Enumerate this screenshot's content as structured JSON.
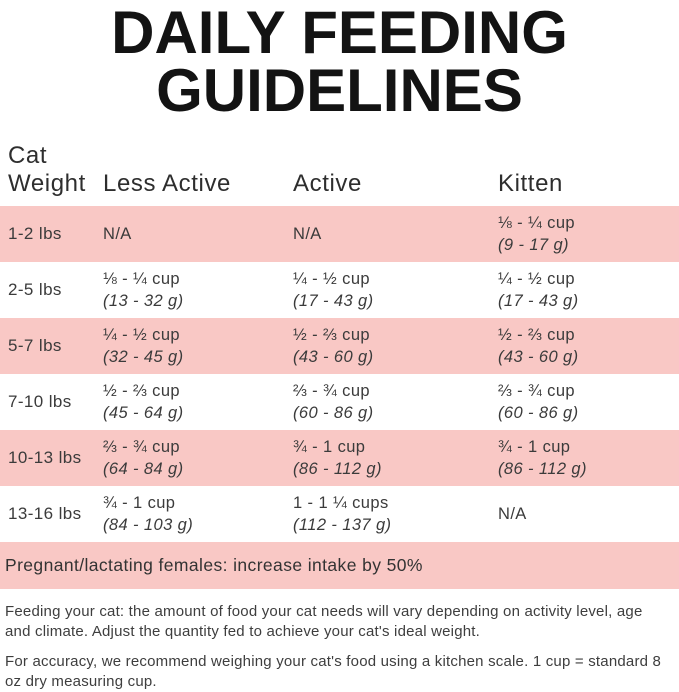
{
  "title": {
    "line1": "DAILY FEEDING",
    "line2": "GUIDELINES"
  },
  "table": {
    "header": {
      "col1_line1": "Cat",
      "col1_line2": "Weight",
      "col2": "Less Active",
      "col3": "Active",
      "col4": "Kitten"
    },
    "rows": [
      {
        "weight": "1-2 lbs",
        "less_active": {
          "cups": "N/A",
          "grams": ""
        },
        "active": {
          "cups": "N/A",
          "grams": ""
        },
        "kitten": {
          "cups": "⅛ - ¼ cup",
          "grams": "(9 - 17 g)"
        }
      },
      {
        "weight": "2-5 lbs",
        "less_active": {
          "cups": "⅛ - ¼ cup",
          "grams": "(13 - 32 g)"
        },
        "active": {
          "cups": "¼ - ½ cup",
          "grams": "(17 - 43 g)"
        },
        "kitten": {
          "cups": "¼ - ½ cup",
          "grams": "(17 - 43 g)"
        }
      },
      {
        "weight": "5-7 lbs",
        "less_active": {
          "cups": "¼ - ½ cup",
          "grams": "(32 - 45 g)"
        },
        "active": {
          "cups": "½ - ⅔ cup",
          "grams": "(43 - 60 g)"
        },
        "kitten": {
          "cups": "½ - ⅔ cup",
          "grams": "(43 - 60 g)"
        }
      },
      {
        "weight": "7-10 lbs",
        "less_active": {
          "cups": "½ - ⅔ cup",
          "grams": "(45 - 64 g)"
        },
        "active": {
          "cups": "⅔ - ¾ cup",
          "grams": "(60 - 86 g)"
        },
        "kitten": {
          "cups": "⅔ - ¾ cup",
          "grams": "(60 - 86 g)"
        }
      },
      {
        "weight": "10-13 lbs",
        "less_active": {
          "cups": "⅔ - ¾ cup",
          "grams": "(64 - 84 g)"
        },
        "active": {
          "cups": "¾ - 1 cup",
          "grams": "(86 - 112 g)"
        },
        "kitten": {
          "cups": "¾ - 1 cup",
          "grams": "(86 - 112 g)"
        }
      },
      {
        "weight": "13-16 lbs",
        "less_active": {
          "cups": "¾ - 1 cup",
          "grams": "(84 - 103 g)"
        },
        "active": {
          "cups": "1 - 1 ¼ cups",
          "grams": "(112 - 137 g)"
        },
        "kitten": {
          "cups": "N/A",
          "grams": ""
        }
      }
    ]
  },
  "banner": {
    "text": "Pregnant/lactating females: increase intake by 50%"
  },
  "notes": [
    "Feeding your cat: the amount of food your cat needs will vary depending on activity level, age and climate. Adjust the quantity fed to achieve your cat's ideal weight.",
    "For accuracy, we recommend weighing your cat's food using a kitchen scale. 1 cup = standard 8 oz dry measuring cup."
  ],
  "colors": {
    "row_pink": "#f9c8c5",
    "text_dark": "#3d3d3d",
    "title_black": "#131313"
  }
}
